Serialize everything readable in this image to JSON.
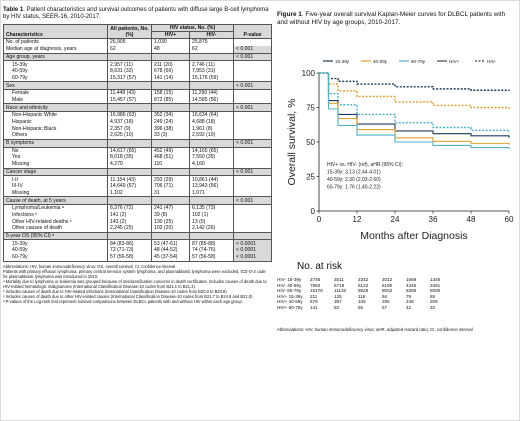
{
  "table": {
    "title_bold": "Table 1",
    "title_rest": ". Patient characteristics and survival outcomes of patients with diffuse large B-cell lymphoma by HIV status, SEER-16, 2010-2017.",
    "headers": {
      "characteristics": "Characteristics",
      "all": "All patients, No. (%)",
      "hiv_status": "HIV status, No. (%)",
      "hiv_pos": "HIV+",
      "hiv_neg": "HIV-",
      "p": "P-value"
    },
    "rows": [
      {
        "type": "row",
        "label": "No. of patients",
        "all": "26,905",
        "pos": "1,030",
        "neg": "25,875",
        "p": ""
      },
      {
        "type": "row",
        "label": "Median age at diagnosis, years",
        "all": "62",
        "pos": "48",
        "neg": "62",
        "p": "< 0.001"
      },
      {
        "type": "sec",
        "label": "Age group, years",
        "all": "",
        "pos": "",
        "neg": "",
        "p": "< 0.001"
      },
      {
        "type": "sub",
        "label": "15-39y",
        "all": "2,957 (11)",
        "pos": "211 (20)",
        "neg": "2,746 (11)",
        "p": ""
      },
      {
        "type": "sub",
        "label": "40-59y",
        "all": "8,631 (32)",
        "pos": "678 (66)",
        "neg": "7,953 (31)",
        "p": ""
      },
      {
        "type": "sub",
        "label": "60-79y",
        "all": "15,317 (57)",
        "pos": "141 (14)",
        "neg": "15,176 (59)",
        "p": ""
      },
      {
        "type": "sec",
        "label": "Sex",
        "all": "",
        "pos": "",
        "neg": "",
        "p": "< 0.001"
      },
      {
        "type": "sub",
        "label": "Female",
        "all": "11,448 (43)",
        "pos": "158 (15)",
        "neg": "11,290 (44)",
        "p": ""
      },
      {
        "type": "sub",
        "label": "Male",
        "all": "15,457 (57)",
        "pos": "872 (85)",
        "neg": "14,585 (56)",
        "p": ""
      },
      {
        "type": "sec",
        "label": "Race and ethnicity",
        "all": "",
        "pos": "",
        "neg": "",
        "p": "< 0.001"
      },
      {
        "type": "sub",
        "label": "Non-Hispanic White",
        "all": "16,986 (63)",
        "pos": "352 (34)",
        "neg": "16,634 (64)",
        "p": ""
      },
      {
        "type": "sub",
        "label": "Hispanic",
        "all": "4,937 (18)",
        "pos": "249 (24)",
        "neg": "4,688 (18)",
        "p": ""
      },
      {
        "type": "sub",
        "label": "Non-Hispanic Black",
        "all": "2,357 (9)",
        "pos": "396 (38)",
        "neg": "1,961 (8)",
        "p": ""
      },
      {
        "type": "sub",
        "label": "Others",
        "all": "2,625 (10)",
        "pos": "33 (3)",
        "neg": "2,592 (10)",
        "p": ""
      },
      {
        "type": "sec",
        "label": "B symptoms",
        "all": "",
        "pos": "",
        "neg": "",
        "p": "< 0.001"
      },
      {
        "type": "sub",
        "label": "No",
        "all": "14,617 (65)",
        "pos": "452 (49)",
        "neg": "14,165 (65)",
        "p": ""
      },
      {
        "type": "sub",
        "label": "Yes",
        "all": "8,018 (35)",
        "pos": "468 (51)",
        "neg": "7,550 (35)",
        "p": ""
      },
      {
        "type": "sub",
        "label": "Missing",
        "all": "4,270",
        "pos": "110",
        "neg": "4,160",
        "p": ""
      },
      {
        "type": "sec",
        "label": "Cancer stage",
        "all": "",
        "pos": "",
        "neg": "",
        "p": "< 0.001"
      },
      {
        "type": "sub",
        "label": "I-II",
        "all": "11,154 (43)",
        "pos": "293 (29)",
        "neg": "10,861 (44)",
        "p": ""
      },
      {
        "type": "sub",
        "label": "III-IV",
        "all": "14,649 (57)",
        "pos": "706 (71)",
        "neg": "13,943 (56)",
        "p": ""
      },
      {
        "type": "sub",
        "label": "Missing",
        "all": "1,102",
        "pos": "31",
        "neg": "1,071",
        "p": ""
      },
      {
        "type": "sec",
        "label": "Cause of death, at 5 years",
        "all": "",
        "pos": "",
        "neg": "",
        "p": "< 0.001"
      },
      {
        "type": "sub",
        "label": "Lymphoma/Leukemia ᵃ",
        "all": "6,376 (72)",
        "pos": "241 (47)",
        "neg": "6,135 (73)",
        "p": ""
      },
      {
        "type": "sub",
        "label": "Infections ᵇ",
        "all": "141 (2)",
        "pos": "39 (8)",
        "neg": "102 (1)",
        "p": ""
      },
      {
        "type": "sub",
        "label": "Other HIV-related deaths ᶜ",
        "all": "143 (2)",
        "pos": "130 (25)",
        "neg": "13 (0)",
        "p": ""
      },
      {
        "type": "sub",
        "label": "Other causes of death",
        "all": "2,245 (25)",
        "pos": "103 (20)",
        "neg": "2,142 (26)",
        "p": ""
      },
      {
        "type": "sec",
        "label": "5-year OS (95% CI) ᵈ",
        "all": "",
        "pos": "",
        "neg": "",
        "p": ""
      },
      {
        "type": "sub",
        "label": "15-39y",
        "all": "84 (83-86)",
        "pos": "53 (47-61)",
        "neg": "87 (85-88)",
        "p": "< 0.0001"
      },
      {
        "type": "sub",
        "label": "40-59y",
        "all": "72 (71-73)",
        "pos": "48 (44-52)",
        "neg": "74 (74-76)",
        "p": "< 0.0001"
      },
      {
        "type": "sub",
        "label": "60-79y",
        "all": "57 (56-58)",
        "pos": "45 (37-54)",
        "neg": "57 (56-58)",
        "p": "< 0.0001"
      }
    ],
    "footnotes": [
      "Abbreviations: HIV, human immunodeficiency virus; OS, overall survival; CI, confidence interval",
      "Patients with primary effusion lymphoma, primary central nervous system lymphoma, and plasmablastic lymphoma were excluded. ICD-O-3 code for plasmablastic lymphoma was introduced in 2010.",
      "ᵃ Mortality due to lymphoma or leukemia was grouped because of misclassification concerns in death certificates. Includes causes of death due to HIV-related hematologic malignancies (International Classification Disease-10 codes from B21.1 to B21.3).",
      "ᵇ Includes causes of death due to HIV-related infections (International Classification Disease-10 codes from B20.0 to B20.9)",
      "ᶜ Includes causes of death due to other HIV-related causes (International Classification Disease-10 codes from B21.7 to B24.9 and B21.0)",
      "ᵈ P-values of the Log-rank test represent survival comparisons between DLBCL patients with and without HIV within each age group."
    ]
  },
  "figure": {
    "title_bold": "Figure 1",
    "title_rest": ". Five-year overall survival Kaplan-Meier curves for DLBCL patients with and without HIV by age groups, 2010-2017.",
    "annotation": [
      "HIV+ vs. HIV- (ref), aHR (95% CI):",
      "15-39y: 3.13 (2.44-4.01)",
      "40-59y: 2.30 (2.03-2.60)",
      "60-79y: 1.76 (1.40-2.22)"
    ],
    "risk_title": "No. at risk",
    "risk_rows": [
      {
        "label": "HIV- 15-39y",
        "values": [
          "2746",
          "2511",
          "2342",
          "2012",
          "1668",
          "1346"
        ]
      },
      {
        "label": "HIV- 40-59y",
        "values": [
          "7953",
          "6719",
          "6122",
          "5190",
          "4345",
          "3491"
        ]
      },
      {
        "label": "HIV- 60-79y",
        "values": [
          "15176",
          "11132",
          "9928",
          "8002",
          "6389",
          "5000"
        ]
      },
      {
        "label": "HIV+ 15-39y",
        "values": [
          "211",
          "135",
          "116",
          "94",
          "79",
          "65"
        ]
      },
      {
        "label": "HIV+ 40-59y",
        "values": [
          "678",
          "397",
          "345",
          "285",
          "248",
          "209"
        ]
      },
      {
        "label": "HIV+ 60-79y",
        "values": [
          "141",
          "83",
          "65",
          "57",
          "42",
          "33"
        ]
      }
    ],
    "footnote": "Abbreviations: HIV, human immunodeficiency virus; aHR, adjusted Hazard ratio; CI, confidence interval"
  },
  "chart_data": {
    "type": "line",
    "title": "",
    "xlabel": "Months after Diagnosis",
    "ylabel": "Overall survival, %",
    "xlim": [
      0,
      60
    ],
    "ylim": [
      0,
      100
    ],
    "xticks": [
      0,
      12,
      24,
      36,
      48,
      60
    ],
    "yticks": [
      0,
      25,
      50,
      75,
      100
    ],
    "legend_position": "top",
    "legend": [
      "15-39y",
      "40-59y",
      "60-79y",
      "HIV+",
      "HIV-"
    ],
    "colors": {
      "15-39y": "#1f3b57",
      "40-59y": "#e0a030",
      "60-79y": "#4fb0c8"
    },
    "series": [
      {
        "group": "15-39y",
        "hiv": "HIV-",
        "x": [
          0,
          3,
          6,
          12,
          24,
          36,
          48,
          60
        ],
        "y": [
          100,
          96,
          94,
          92,
          90,
          88.5,
          87.5,
          87
        ]
      },
      {
        "group": "40-59y",
        "hiv": "HIV-",
        "x": [
          0,
          3,
          6,
          12,
          24,
          36,
          48,
          60
        ],
        "y": [
          100,
          92,
          87,
          83,
          79,
          76.5,
          75,
          74
        ]
      },
      {
        "group": "60-79y",
        "hiv": "HIV-",
        "x": [
          0,
          3,
          6,
          12,
          24,
          36,
          48,
          60
        ],
        "y": [
          100,
          85,
          77,
          70,
          64,
          60.5,
          58.5,
          57
        ]
      },
      {
        "group": "15-39y",
        "hiv": "HIV+",
        "x": [
          0,
          3,
          6,
          12,
          24,
          36,
          48,
          60
        ],
        "y": [
          100,
          80,
          70,
          63,
          58,
          56,
          54.5,
          53
        ]
      },
      {
        "group": "40-59y",
        "hiv": "HIV+",
        "x": [
          0,
          3,
          6,
          12,
          24,
          36,
          48,
          60
        ],
        "y": [
          100,
          78,
          67,
          59,
          53,
          50.5,
          49,
          48
        ]
      },
      {
        "group": "60-79y",
        "hiv": "HIV+",
        "x": [
          0,
          3,
          6,
          12,
          24,
          36,
          48,
          60
        ],
        "y": [
          100,
          74,
          62,
          55,
          50,
          47.5,
          46,
          45
        ]
      }
    ]
  }
}
